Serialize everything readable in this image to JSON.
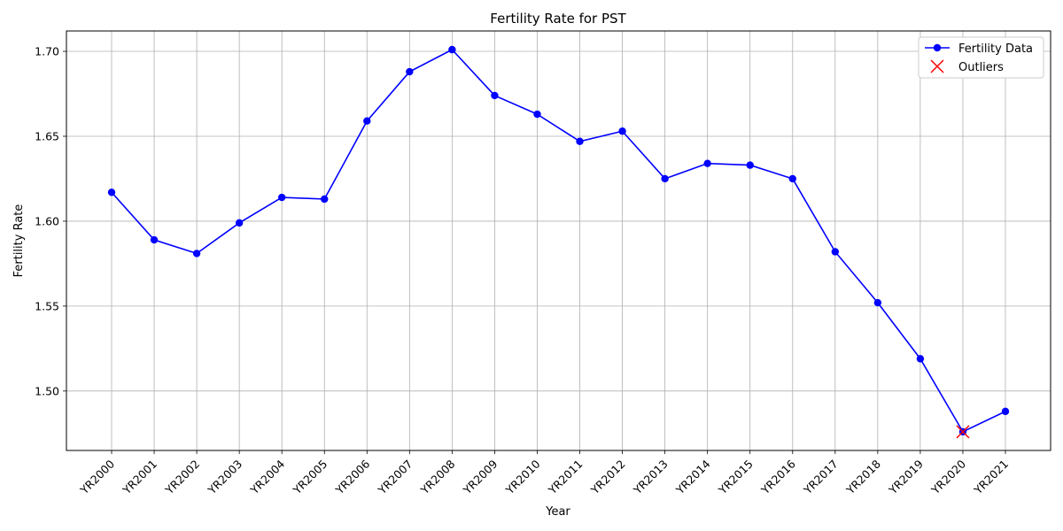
{
  "chart_data": {
    "type": "line",
    "title": "Fertility Rate for PST",
    "xlabel": "Year",
    "ylabel": "Fertility Rate",
    "categories": [
      "YR2000",
      "YR2001",
      "YR2002",
      "YR2003",
      "YR2004",
      "YR2005",
      "YR2006",
      "YR2007",
      "YR2008",
      "YR2009",
      "YR2010",
      "YR2011",
      "YR2012",
      "YR2013",
      "YR2014",
      "YR2015",
      "YR2016",
      "YR2017",
      "YR2018",
      "YR2019",
      "YR2020",
      "YR2021"
    ],
    "series": [
      {
        "name": "Fertility Data",
        "color": "#0000ff",
        "marker": "circle",
        "values": [
          1.617,
          1.589,
          1.581,
          1.599,
          1.614,
          1.613,
          1.659,
          1.688,
          1.701,
          1.674,
          1.663,
          1.647,
          1.653,
          1.625,
          1.634,
          1.633,
          1.625,
          1.582,
          1.552,
          1.519,
          1.476,
          1.488
        ]
      },
      {
        "name": "Outliers",
        "color": "#ff0000",
        "marker": "x",
        "points": [
          {
            "category": "YR2020",
            "value": 1.476
          }
        ]
      }
    ],
    "ylim": [
      1.465,
      1.712
    ],
    "yticks": [
      "1.50",
      "1.55",
      "1.60",
      "1.65",
      "1.70"
    ],
    "ytick_values": [
      1.5,
      1.55,
      1.6,
      1.65,
      1.7
    ],
    "grid": true,
    "legend_position": "top-right"
  }
}
